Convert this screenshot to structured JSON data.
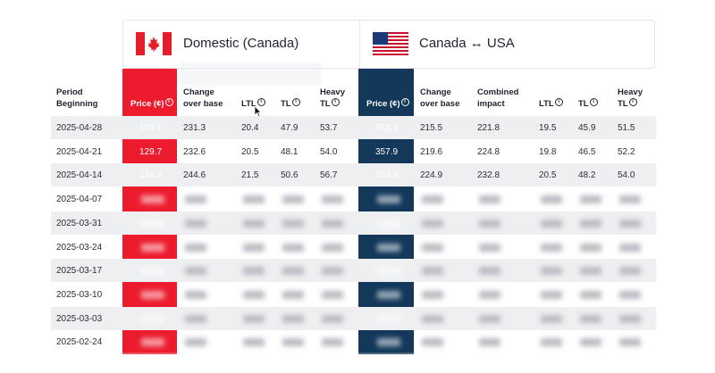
{
  "domestic": {
    "title": "Domestic (Canada)",
    "flag_icon": "canada-flag-icon",
    "accent": "#ec1c2e"
  },
  "crossborder": {
    "title": "Canada ↔ USA",
    "flag_icon": "usa-flag-icon",
    "accent": "#13385a"
  },
  "columns": {
    "period": "Period Beginning",
    "price": "Price (¢)",
    "change": "Change over base",
    "combined": "Combined impact",
    "ltl": "LTL",
    "tl": "TL",
    "heavy_tl": "Heavy TL"
  },
  "rows": [
    {
      "date": "2025-04-28",
      "d_price": "129.2",
      "d_change": "231.3",
      "d_ltl": "20.4",
      "d_tl": "47.9",
      "d_heavy": "53.7",
      "c_price": "353.4",
      "c_change": "215.5",
      "c_combined": "221.8",
      "c_ltl": "19.5",
      "c_tl": "45.9",
      "c_heavy": "51.5"
    },
    {
      "date": "2025-04-21",
      "d_price": "129.7",
      "d_change": "232.6",
      "d_ltl": "20.5",
      "d_tl": "48.1",
      "d_heavy": "54.0",
      "c_price": "357.9",
      "c_change": "219.6",
      "c_combined": "224.8",
      "c_ltl": "19.8",
      "c_tl": "46.5",
      "c_heavy": "52.2"
    },
    {
      "date": "2025-04-14",
      "d_price": "134.4",
      "d_change": "244.6",
      "d_ltl": "21.5",
      "d_tl": "50.6",
      "d_heavy": "56.7",
      "c_price": "363.9",
      "c_change": "224.9",
      "c_combined": "232.8",
      "c_ltl": "20.5",
      "c_tl": "48.2",
      "c_heavy": "54.0"
    },
    {
      "date": "2025-04-07"
    },
    {
      "date": "2025-03-31"
    },
    {
      "date": "2025-03-24"
    },
    {
      "date": "2025-03-17"
    },
    {
      "date": "2025-03-10"
    },
    {
      "date": "2025-03-03"
    },
    {
      "date": "2025-02-24"
    }
  ]
}
